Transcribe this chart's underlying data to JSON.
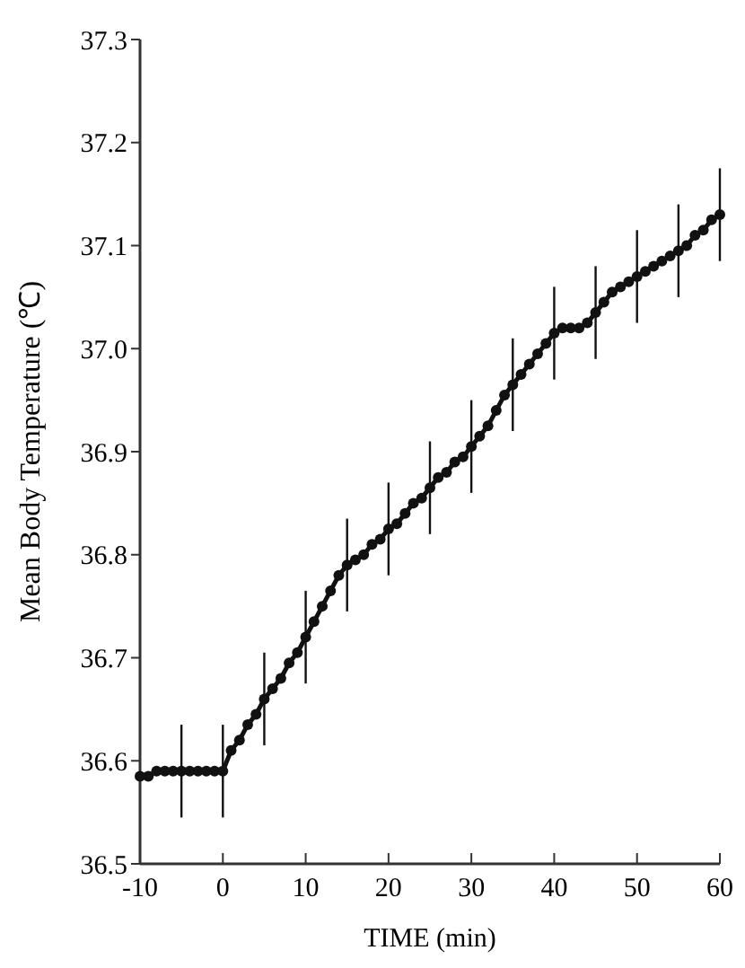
{
  "chart_data": {
    "type": "line",
    "xlabel": "TIME (min)",
    "ylabel": "Mean Body Temperature (℃)",
    "x": [
      -10,
      -9,
      -8,
      -7,
      -6,
      -5,
      -4,
      -3,
      -2,
      -1,
      0,
      1,
      2,
      3,
      4,
      5,
      6,
      7,
      8,
      9,
      10,
      11,
      12,
      13,
      14,
      15,
      16,
      17,
      18,
      19,
      20,
      21,
      22,
      23,
      24,
      25,
      26,
      27,
      28,
      29,
      30,
      31,
      32,
      33,
      34,
      35,
      36,
      37,
      38,
      39,
      40,
      41,
      42,
      43,
      44,
      45,
      46,
      47,
      48,
      49,
      50,
      51,
      52,
      53,
      54,
      55,
      56,
      57,
      58,
      59,
      60
    ],
    "series": [
      {
        "color": "#111111",
        "values": [
          36.585,
          36.585,
          36.59,
          36.59,
          36.59,
          36.59,
          36.59,
          36.59,
          36.59,
          36.59,
          36.59,
          36.61,
          36.62,
          36.635,
          36.645,
          36.66,
          36.67,
          36.68,
          36.695,
          36.705,
          36.72,
          36.735,
          36.75,
          36.765,
          36.78,
          36.79,
          36.795,
          36.8,
          36.81,
          36.815,
          36.825,
          36.83,
          36.84,
          36.85,
          36.855,
          36.865,
          36.875,
          36.88,
          36.89,
          36.895,
          36.905,
          36.915,
          36.925,
          36.94,
          36.955,
          36.965,
          36.975,
          36.985,
          36.995,
          37.005,
          37.015,
          37.02,
          37.02,
          37.02,
          37.025,
          37.035,
          37.045,
          37.055,
          37.06,
          37.065,
          37.07,
          37.075,
          37.08,
          37.085,
          37.09,
          37.095,
          37.1,
          37.11,
          37.115,
          37.125,
          37.13
        ],
        "errors": [
          null,
          null,
          null,
          null,
          null,
          0.045,
          null,
          null,
          null,
          null,
          0.045,
          null,
          null,
          null,
          null,
          0.045,
          null,
          null,
          null,
          null,
          0.045,
          null,
          null,
          null,
          null,
          0.045,
          null,
          null,
          null,
          null,
          0.045,
          null,
          null,
          null,
          null,
          0.045,
          null,
          null,
          null,
          null,
          0.045,
          null,
          null,
          null,
          null,
          0.045,
          null,
          null,
          null,
          null,
          0.045,
          null,
          null,
          null,
          null,
          0.045,
          null,
          null,
          null,
          null,
          0.045,
          null,
          null,
          null,
          null,
          0.045,
          null,
          null,
          null,
          null,
          0.045
        ]
      }
    ],
    "xlim": [
      -10,
      60
    ],
    "xticks": [
      -10,
      0,
      10,
      20,
      30,
      40,
      50,
      60
    ],
    "ylim": [
      36.5,
      37.3
    ],
    "yticks": [
      {
        "value": 36.5,
        "label": "36.5"
      },
      {
        "value": 36.6,
        "label": "36.6"
      },
      {
        "value": 36.7,
        "label": "36.7"
      },
      {
        "value": 36.8,
        "label": "36.8"
      },
      {
        "value": 36.9,
        "label": "36.9"
      },
      {
        "value": 37.0,
        "label": "37.0"
      },
      {
        "value": 37.1,
        "label": "37.1"
      },
      {
        "value": 37.2,
        "label": "37.2"
      },
      {
        "value": 37.3,
        "label": "37.3"
      }
    ],
    "marker": "circle",
    "line_style": "solid"
  }
}
